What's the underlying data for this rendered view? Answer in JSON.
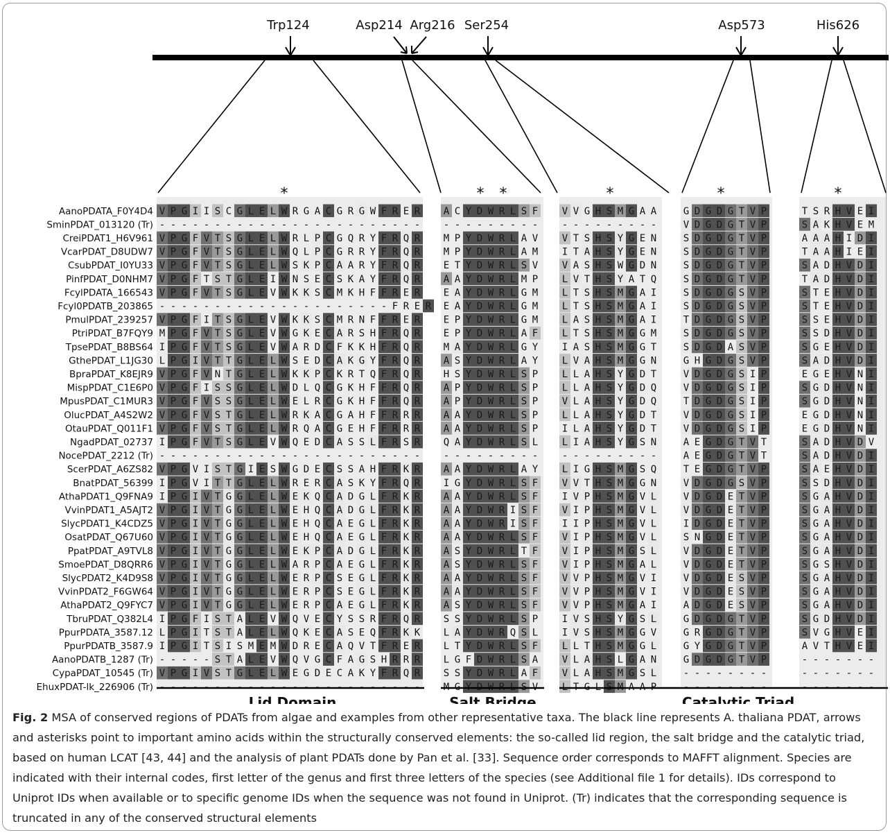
{
  "markers": [
    {
      "label": "Trp124"
    },
    {
      "label": "Asp214"
    },
    {
      "label": "Arg216"
    },
    {
      "label": "Ser254"
    },
    {
      "label": "Asp573"
    },
    {
      "label": "His626"
    }
  ],
  "regions": [
    {
      "name": "Lid Domain"
    },
    {
      "name": "Salt Bridge"
    },
    {
      "name": "Catalytic Triad"
    }
  ],
  "conservation_symbol": "*",
  "shade_palette": [
    "#ffffff",
    "#e8e8e8",
    "#c2c2c2",
    "#999999",
    "#707070",
    "#505050"
  ],
  "alignment": [
    {
      "id": "AanoPDATA_F0Y4D4",
      "blocks": [
        "VPGIISCGLELWRGACGRGWFRER",
        "ACYDWRLSF",
        "VVGHSMGAA",
        "GDGDGTVP",
        "TSRHVEI"
      ]
    },
    {
      "id": "SminPDAT_013120 (Tr)",
      "blocks": [
        "------------------------",
        "---------",
        "---------",
        "VDGDGTVP",
        "SAKHVEM"
      ]
    },
    {
      "id": "CreiPDAT1_H6V961",
      "blocks": [
        "VPGFVTSGLELWRLPCGQRYFRQR",
        "MPYDWRLAV",
        "VTSHSYGEN",
        "SDGDGTVP",
        "AAAHIDI"
      ]
    },
    {
      "id": "VcarPDAT_D8UDW7",
      "blocks": [
        "VPGFVTSGLELWQLPCGRRYFRQR",
        "MPYDWRLAM",
        "ITAHSYGEN",
        "SDGDGTVP",
        "TAAHIEI"
      ]
    },
    {
      "id": "CsubPDAT_I0YU33",
      "blocks": [
        "VPGFVTSGLELWSKPCAARYFRQR",
        "ETYDWRLSV",
        "VASHSWGDN",
        "SDGDGTVP",
        "SADHVDI"
      ]
    },
    {
      "id": "PinfPDAT_D0NHM7",
      "blocks": [
        "VPGFTSTGLEIWNSECSKAYFRQR",
        "AAYDWRLMP",
        "LVTHSYATQ",
        "SDGDGTVP",
        "TADHVDI"
      ]
    },
    {
      "id": "FcylPDATA_166543",
      "blocks": [
        "VPGFVTSGLEVWKKSCMKHFFRER",
        "EAYDWRLGM",
        "LTSHSMGAI",
        "SDGDGSVP",
        "STEHVDI"
      ]
    },
    {
      "id": "Fcyl0PDATB_203865",
      "blocks": [
        "---------------------FRER",
        "EAYDWRLGM",
        "LTSHSMGAI",
        "SDGDGSVP",
        "STEHVDI"
      ]
    },
    {
      "id": "PmulPDAT_239257",
      "blocks": [
        "VPGFITSGLEVWKKSCMRNFFRER",
        "EPYDWRLGM",
        "LASHSMGAI",
        "TDGDGSVP",
        "SSEHVDI"
      ]
    },
    {
      "id": "PtriPDAT_B7FQY9",
      "blocks": [
        "MPGFVTSGLEVWGKECARSHFRQR",
        "EPYDWRLAF",
        "LTSHSMGGM",
        "SDGDGSVP",
        "SSDHVDI"
      ]
    },
    {
      "id": "TpsePDAT_B8BS64",
      "blocks": [
        "IPGFVTSGLEVWARDCFKKHFRQR",
        "MAYDWRLGY",
        "IASHSMGGT",
        "SDGDASVP",
        "SGEHVDI"
      ]
    },
    {
      "id": "GthePDAT_L1JG30",
      "blocks": [
        "LPGIVTTGLELWSEDCAKGYFRQR",
        "ASYDWRLAY",
        "LVAHSMGGN",
        "GHGDGSVP",
        "SADHVDI"
      ]
    },
    {
      "id": "BpraPDAT_K8EJR9",
      "blocks": [
        "VPGFVNTGLELWKKPCKRTQFRQR",
        "HSYDWRLSP",
        "LLAHSYGDT",
        "VDGDGSIP",
        "EGEHVNI"
      ]
    },
    {
      "id": "MispPDAT_C1E6P0",
      "blocks": [
        "VPGFISSGLELWDLQCGKHFFRQR",
        "APYDWRLSP",
        "LLAHSYGDQ",
        "VDGDGSIP",
        "SGDHVNI"
      ]
    },
    {
      "id": "MpusPDAT_C1MUR3",
      "blocks": [
        "VPGFVSSGLELWELRCGKHFFRQR",
        "APYDWRLSP",
        "VLAHSYGDQ",
        "TDGDGSIP",
        "SGDHVNI"
      ]
    },
    {
      "id": "OlucPDAT_A4S2W2",
      "blocks": [
        "VPGFVSTGLELWRKACGAHFFRRR",
        "AAYDWRLSP",
        "LLAHSYGDT",
        "VDGDGSIP",
        "EGDHVNI"
      ]
    },
    {
      "id": "OtauPDAT_Q011F1",
      "blocks": [
        "VPGFVSTGLELWRQACGEHFFRRR",
        "AAYDWRLSP",
        "ILAHSYGDT",
        "VDGDGSIP",
        "EGDHVNI"
      ]
    },
    {
      "id": "NgadPDAT_02737",
      "blocks": [
        "IPGFVTSGLEVWQEDCASSLFRSR",
        "QAYDWRLSL",
        "LIAHSYGSN",
        "AEGDGTVT",
        "SADHVDV"
      ]
    },
    {
      "id": "NocePDAT_2212 (Tr)",
      "blocks": [
        "------------------------",
        "---------",
        "---------",
        "AEGDGTVT",
        "SADHVDI"
      ]
    },
    {
      "id": "ScerPDAT_A6ZS82",
      "blocks": [
        "VPGVISTGIESWGDECSSAHFRKR",
        "AAYDWRLAY",
        "LIGHSMGSQ",
        "TEGDGTVP",
        "SAEHVDI"
      ]
    },
    {
      "id": "BnatPDAT_56399",
      "blocks": [
        "IPGVITTGLELWRERCASKYFRQR",
        "IGYDWRLSF",
        "VVTHSMGGN",
        "VDGDGSVP",
        "SSDHVDI"
      ]
    },
    {
      "id": "AthaPDAT1_Q9FNA9",
      "blocks": [
        "IPGIVTGGLELWEKQCADGLFRKR",
        "AAYDWRLSF",
        "IVPHSMGVL",
        "VDGDETVP",
        "SGAHVDI"
      ]
    },
    {
      "id": "VvinPDAT1_A5AJT2",
      "blocks": [
        "VPGIVTGGLELWEHQCADGLFRKR",
        "AAYDWRISF",
        "VIPHSMGVL",
        "VDGDETVP",
        "SGAHVDI"
      ]
    },
    {
      "id": "SlycPDAT1_K4CDZ5",
      "blocks": [
        "VPGIVTGGLELWEHQCAEGLFRKR",
        "AAYDWRISF",
        "IIPHSMGVL",
        "IDGDETVP",
        "SGAHVDI"
      ]
    },
    {
      "id": "OsatPDAT_Q67U60",
      "blocks": [
        "VPGIVTGGLELWEHQCAEGLFRKR",
        "AAYDWRLSF",
        "VIPHSMGVL",
        "SNGDETVP",
        "SGAHVDI"
      ]
    },
    {
      "id": "PpatPDAT_A9TVL8",
      "blocks": [
        "VPGIVTGGLELWEKPCADGLFRKR",
        "ASYDWRLTF",
        "VIPHSMGSL",
        "VDGDETVP",
        "SGAHVDI"
      ]
    },
    {
      "id": "SmoePDAT_D8QRR6",
      "blocks": [
        "VPGIVTGGLELWARPCAEGLFRKR",
        "ASYDWRLSF",
        "VIPHSMGAL",
        "VDGDETVP",
        "SGSHVDI"
      ]
    },
    {
      "id": "SlycPDAT2_K4D9S8",
      "blocks": [
        "VPGIVTGGLELWERPCSEGLFRKR",
        "AAYDWRLSF",
        "VVPHSMGVI",
        "VDGDESVP",
        "SGAHVDI"
      ]
    },
    {
      "id": "VvinPDAT2_F6GW64",
      "blocks": [
        "VPGIVTGGLELWERPCSEGLFRKR",
        "AAYDWRLSF",
        "VVPHSMGVI",
        "VDGDESVP",
        "SGAHVDI"
      ]
    },
    {
      "id": "AthaPDAT2_Q9FYC7",
      "blocks": [
        "VPGIVTGGLELWERPCAEGLFRKR",
        "ASYDWRLSF",
        "VVPHSMGAI",
        "ADGDESVP",
        "SGAHVDI"
      ]
    },
    {
      "id": "TbruPDAT_Q382L4",
      "blocks": [
        "IPGFISTALEVWQVECYSSRFRQR",
        "SSYDWRLSP",
        "IVSHSYGSL",
        "GDGDGTVP",
        "SGDHVDI"
      ]
    },
    {
      "id": "PpurPDATA_3587.12",
      "blocks": [
        "LPGITSTALELWQKECASEQFRKK",
        "LAYDWRQSL",
        "IVSHSMGGV",
        "GRGDGTVP",
        "SVGHVEI"
      ]
    },
    {
      "id": "PpurPDATB_3587.9",
      "blocks": [
        "IPGITSISMEMWDRECAQVTFRER",
        "LTYDWRLSF",
        "LLTHSMGGL",
        "GYGDGTVP",
        "AVTHVEI"
      ]
    },
    {
      "id": "AanoPDATB_1287 (Tr)",
      "blocks": [
        "-----STALEVWQVGCFAGSHRRR",
        "LGFDWRLSA",
        "VLAHSLGAN",
        "GDGDGTVP",
        "-------"
      ]
    },
    {
      "id": "CypaPDAT_10545 (Tr)",
      "blocks": [
        "VPGIVSTGLELWEGDECAKYFRQR",
        "SSYDWRLAF",
        "VLAHSMGSL",
        "--------",
        "-------"
      ]
    },
    {
      "id": "EhuxPDAT-lk_226906 (Tr)",
      "blocks": [
        "------------------------",
        "MGYDWRLSV",
        "LTGLSMAAP",
        "--------",
        "-------"
      ]
    }
  ],
  "caption": {
    "label": "Fig. 2",
    "text": "MSA of conserved regions of PDATs from algae and examples from other representative taxa. The black line represents A. thaliana PDAT, arrows and asterisks point to important amino acids within the structurally conserved elements: the so-called lid region, the salt bridge and the catalytic triad, based on human LCAT [43, 44] and the analysis of plant PDATs done by Pan et al. [33]. Sequence order corresponds to MAFFT alignment. Species are indicated with their internal codes, first letter of the genus and first three letters of the species (see Additional file 1 for details). IDs correspond to Uniprot IDs when available or to specific genome IDs when the sequence was not found in Uniprot. (Tr) indicates that the corresponding sequence is truncated in any of the conserved structural elements"
  }
}
